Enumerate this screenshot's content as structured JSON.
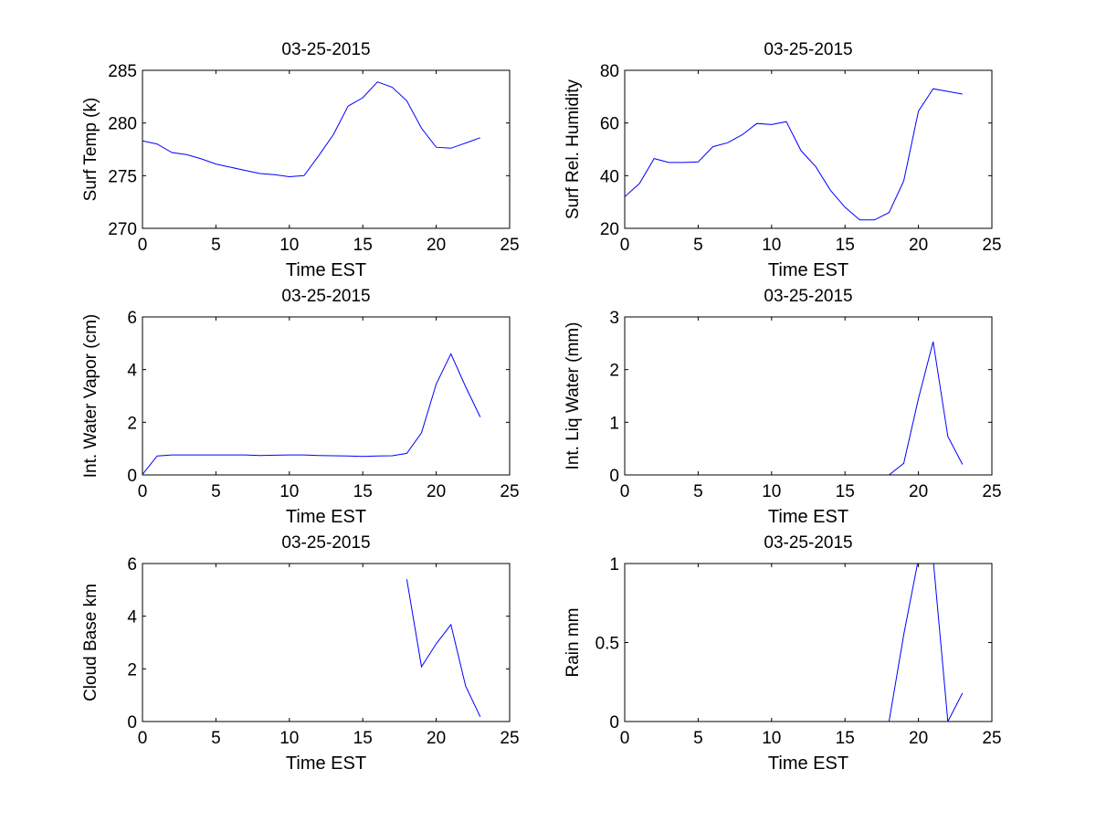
{
  "chart_data": [
    {
      "type": "line",
      "title": "03-25-2015",
      "xlabel": "Time EST",
      "ylabel": "Surf Temp (k)",
      "xlim": [
        0,
        25
      ],
      "ylim": [
        270,
        285
      ],
      "xticks": [
        0,
        5,
        10,
        15,
        20,
        25
      ],
      "yticks": [
        270,
        275,
        280,
        285
      ],
      "grid": false,
      "series": [
        {
          "color": "#0000ff",
          "points": [
            [
              0,
              278.3
            ],
            [
              1,
              278.0
            ],
            [
              2,
              277.2
            ],
            [
              3,
              277.0
            ],
            [
              4,
              276.6
            ],
            [
              5,
              276.1
            ],
            [
              6,
              275.8
            ],
            [
              7,
              275.5
            ],
            [
              8,
              275.2
            ],
            [
              9,
              275.1
            ],
            [
              10,
              274.9
            ],
            [
              11,
              275.0
            ],
            [
              12,
              276.9
            ],
            [
              13,
              278.9
            ],
            [
              14,
              281.6
            ],
            [
              15,
              282.4
            ],
            [
              16,
              283.9
            ],
            [
              17,
              283.4
            ],
            [
              18,
              282.1
            ],
            [
              19,
              279.5
            ],
            [
              20,
              277.7
            ],
            [
              21,
              277.6
            ],
            [
              22,
              278.1
            ],
            [
              23,
              278.6
            ]
          ]
        }
      ]
    },
    {
      "type": "line",
      "title": "03-25-2015",
      "xlabel": "Time EST",
      "ylabel": "Surf Rel. Humidity",
      "xlim": [
        0,
        25
      ],
      "ylim": [
        20,
        80
      ],
      "xticks": [
        0,
        5,
        10,
        15,
        20,
        25
      ],
      "yticks": [
        20,
        40,
        60,
        80
      ],
      "grid": false,
      "series": [
        {
          "color": "#0000ff",
          "points": [
            [
              0,
              32
            ],
            [
              1,
              37
            ],
            [
              2,
              46.5
            ],
            [
              3,
              45
            ],
            [
              4,
              45
            ],
            [
              5,
              45.2
            ],
            [
              6,
              51
            ],
            [
              7,
              52.5
            ],
            [
              8,
              55.5
            ],
            [
              9,
              59.8
            ],
            [
              10,
              59.4
            ],
            [
              11,
              60.5
            ],
            [
              12,
              49.5
            ],
            [
              13,
              43.5
            ],
            [
              14,
              34.5
            ],
            [
              15,
              28
            ],
            [
              16,
              23.2
            ],
            [
              17,
              23.2
            ],
            [
              18,
              26
            ],
            [
              19,
              38
            ],
            [
              20,
              64.5
            ],
            [
              21,
              73
            ],
            [
              22,
              72
            ],
            [
              23,
              71
            ]
          ]
        }
      ]
    },
    {
      "type": "line",
      "title": "03-25-2015",
      "xlabel": "Time EST",
      "ylabel": "Int. Water Vapor (cm)",
      "xlim": [
        0,
        25
      ],
      "ylim": [
        0,
        6
      ],
      "xticks": [
        0,
        5,
        10,
        15,
        20,
        25
      ],
      "yticks": [
        0,
        2,
        4,
        6
      ],
      "grid": false,
      "series": [
        {
          "color": "#0000ff",
          "points": [
            [
              0,
              0.02
            ],
            [
              1,
              0.72
            ],
            [
              2,
              0.76
            ],
            [
              3,
              0.76
            ],
            [
              4,
              0.76
            ],
            [
              5,
              0.76
            ],
            [
              6,
              0.76
            ],
            [
              7,
              0.76
            ],
            [
              8,
              0.74
            ],
            [
              9,
              0.75
            ],
            [
              10,
              0.76
            ],
            [
              11,
              0.76
            ],
            [
              12,
              0.74
            ],
            [
              13,
              0.73
            ],
            [
              14,
              0.72
            ],
            [
              15,
              0.7
            ],
            [
              16,
              0.72
            ],
            [
              17,
              0.73
            ],
            [
              18,
              0.82
            ],
            [
              19,
              1.6
            ],
            [
              20,
              3.45
            ],
            [
              21,
              4.6
            ],
            [
              22,
              3.35
            ],
            [
              23,
              2.2
            ]
          ]
        }
      ]
    },
    {
      "type": "line",
      "title": "03-25-2015",
      "xlabel": "Time EST",
      "ylabel": "Int. Liq Water (mm)",
      "xlim": [
        0,
        25
      ],
      "ylim": [
        0,
        3
      ],
      "xticks": [
        0,
        5,
        10,
        15,
        20,
        25
      ],
      "yticks": [
        0,
        1,
        2,
        3
      ],
      "grid": false,
      "series": [
        {
          "color": "#0000ff",
          "points": [
            [
              18,
              0
            ],
            [
              19,
              0.22
            ],
            [
              20,
              1.45
            ],
            [
              21,
              2.53
            ],
            [
              22,
              0.73
            ],
            [
              23,
              0.2
            ]
          ]
        }
      ]
    },
    {
      "type": "line",
      "title": "03-25-2015",
      "xlabel": "Time EST",
      "ylabel": "Cloud Base km",
      "xlim": [
        0,
        25
      ],
      "ylim": [
        0,
        6
      ],
      "xticks": [
        0,
        5,
        10,
        15,
        20,
        25
      ],
      "yticks": [
        0,
        2,
        4,
        6
      ],
      "grid": false,
      "series": [
        {
          "color": "#0000ff",
          "points": [
            [
              18,
              5.4
            ],
            [
              19,
              2.08
            ],
            [
              20,
              2.95
            ],
            [
              21,
              3.68
            ],
            [
              22,
              1.35
            ],
            [
              23,
              0.18
            ]
          ]
        }
      ]
    },
    {
      "type": "line",
      "title": "03-25-2015",
      "xlabel": "Time EST",
      "ylabel": "Rain mm",
      "xlim": [
        0,
        25
      ],
      "ylim": [
        0,
        1
      ],
      "xticks": [
        0,
        5,
        10,
        15,
        20,
        25
      ],
      "yticks": [
        0,
        0.5,
        1
      ],
      "ytick_labels": [
        "0",
        "0.5",
        "1"
      ],
      "grid": false,
      "series": [
        {
          "color": "#0000ff",
          "points": [
            [
              18,
              0
            ],
            [
              19,
              0.55
            ],
            [
              20,
              1.03
            ],
            [
              21,
              1.03
            ],
            [
              22,
              0
            ],
            [
              23,
              0.18
            ]
          ]
        }
      ]
    }
  ]
}
